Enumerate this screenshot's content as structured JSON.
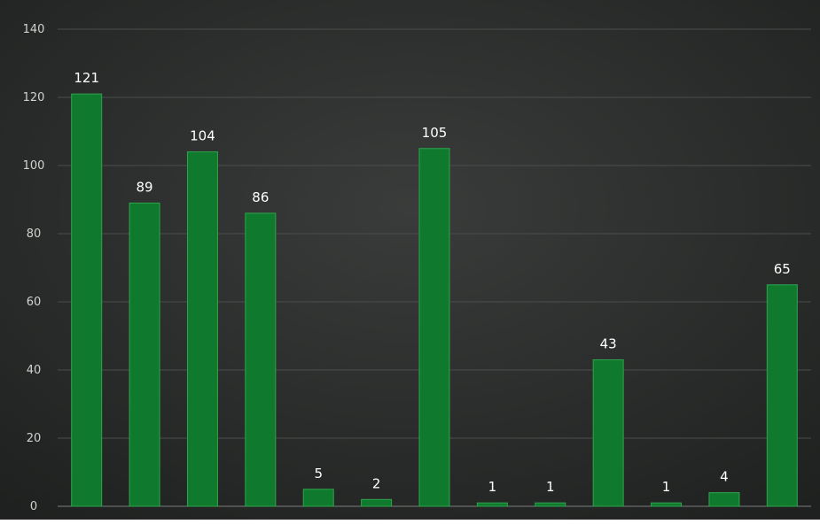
{
  "chart_data": {
    "type": "bar",
    "categories": [
      "",
      "",
      "",
      "",
      "",
      "",
      "",
      "",
      "",
      "",
      "",
      "",
      ""
    ],
    "values": [
      121,
      89,
      104,
      86,
      5,
      2,
      105,
      1,
      1,
      43,
      1,
      4,
      65
    ],
    "value_labels": [
      "121",
      "89",
      "104",
      "86",
      "5",
      "2",
      "105",
      "1",
      "1",
      "43",
      "1",
      "4",
      "65"
    ],
    "y_ticks": [
      0,
      20,
      40,
      60,
      80,
      100,
      120,
      140
    ],
    "y_tick_labels": [
      "0",
      "20",
      "40",
      "60",
      "80",
      "100",
      "120",
      "140"
    ],
    "ylim": [
      0,
      140
    ],
    "grid": true,
    "legend": "none",
    "colors": {
      "background": "#2b2d2c",
      "bar": "#0f7a2e",
      "bar_edge": "#2fa34c",
      "text": "#ffffff"
    }
  }
}
